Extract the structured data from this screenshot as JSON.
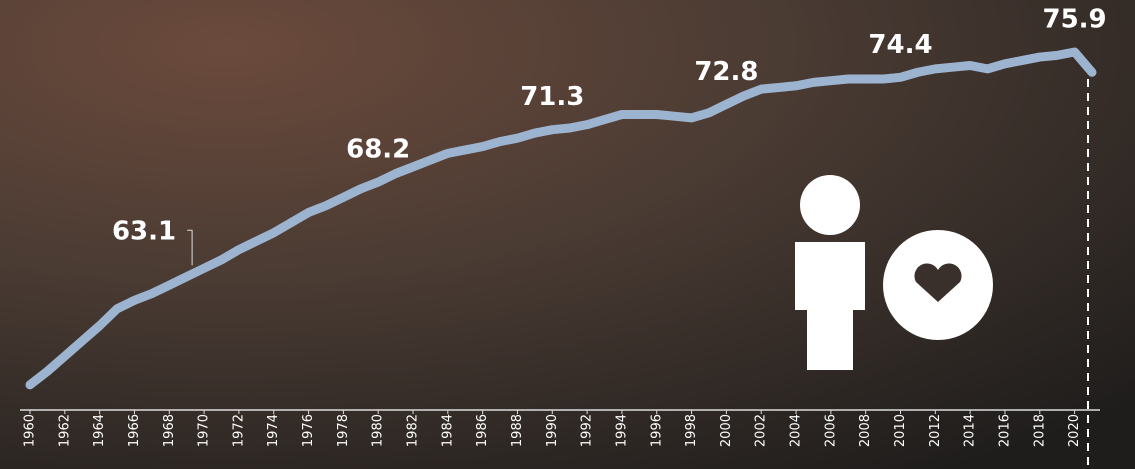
{
  "chart_data": {
    "type": "line",
    "x": [
      1960,
      1961,
      1962,
      1963,
      1964,
      1965,
      1966,
      1967,
      1968,
      1969,
      1970,
      1971,
      1972,
      1973,
      1974,
      1975,
      1976,
      1977,
      1978,
      1979,
      1980,
      1981,
      1982,
      1983,
      1984,
      1985,
      1986,
      1987,
      1988,
      1989,
      1990,
      1991,
      1992,
      1993,
      1994,
      1995,
      1996,
      1997,
      1998,
      1999,
      2000,
      2001,
      2002,
      2003,
      2004,
      2005,
      2006,
      2007,
      2008,
      2009,
      2010,
      2011,
      2012,
      2013,
      2014,
      2015,
      2016,
      2017,
      2018,
      2019,
      2020,
      2021
    ],
    "series": [
      {
        "color": "#9db4d0",
        "values": [
          56.2,
          57.0,
          57.9,
          58.8,
          59.7,
          60.7,
          61.2,
          61.6,
          62.1,
          62.6,
          63.1,
          63.6,
          64.2,
          64.7,
          65.2,
          65.8,
          66.4,
          66.8,
          67.3,
          67.8,
          68.2,
          68.7,
          69.1,
          69.5,
          69.9,
          70.1,
          70.3,
          70.6,
          70.8,
          71.1,
          71.3,
          71.4,
          71.6,
          71.9,
          72.2,
          72.2,
          72.2,
          72.1,
          72.0,
          72.3,
          72.8,
          73.3,
          73.7,
          73.8,
          73.9,
          74.1,
          74.2,
          74.3,
          74.3,
          74.3,
          74.4,
          74.7,
          74.9,
          75.0,
          75.1,
          74.9,
          75.2,
          75.4,
          75.6,
          75.7,
          75.9,
          74.7
        ]
      }
    ],
    "xlim": [
      1960,
      2021
    ],
    "xticks": [
      1960,
      1962,
      1964,
      1966,
      1968,
      1970,
      1972,
      1974,
      1976,
      1978,
      1980,
      1982,
      1984,
      1986,
      1988,
      1990,
      1992,
      1994,
      1996,
      1998,
      2000,
      2002,
      2004,
      2006,
      2008,
      2010,
      2012,
      2014,
      2016,
      2018,
      2020
    ],
    "ylim": [
      54,
      78
    ]
  }
}
